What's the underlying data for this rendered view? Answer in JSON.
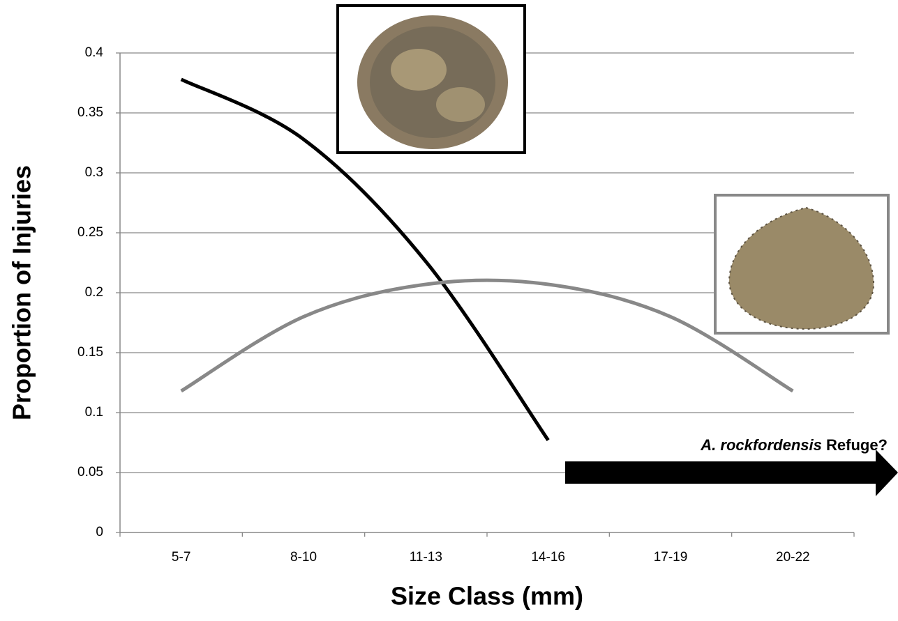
{
  "chart_data": {
    "type": "line",
    "x_label": "Size Class (mm)",
    "y_label": "Proportion of Injuries",
    "categories": [
      "5-7",
      "8-10",
      "11-13",
      "14-16",
      "17-19",
      "20-22"
    ],
    "series": [
      {
        "color": "#000000",
        "values": [
          0.378,
          0.328,
          0.226,
          0.077,
          null,
          null
        ]
      },
      {
        "color": "#888888",
        "values": [
          0.118,
          0.18,
          0.207,
          0.207,
          0.18,
          0.118
        ]
      }
    ],
    "ylim": [
      0,
      0.4
    ],
    "yticks": [
      0,
      0.05,
      0.1,
      0.15,
      0.2,
      0.25,
      0.3,
      0.35,
      0.4
    ],
    "grid": true,
    "annotation": {
      "species": "A. rockfordensis",
      "text": "Refuge?"
    }
  }
}
